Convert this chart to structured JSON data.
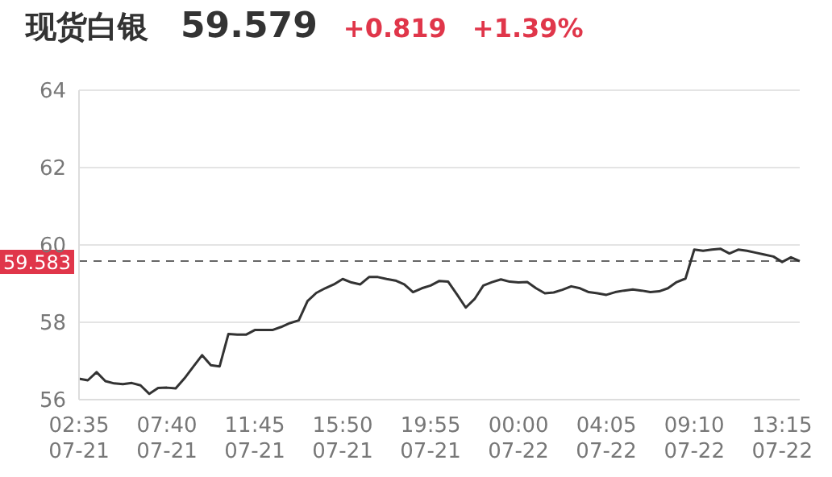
{
  "chart_data": {
    "type": "line",
    "title": "现货白银",
    "annotations": [
      "59.579",
      "+0.819",
      "+1.39%"
    ],
    "categories": [
      "02:35\n07-21",
      null,
      null,
      null,
      null,
      null,
      null,
      null,
      null,
      null,
      "07:40\n07-21",
      null,
      null,
      null,
      null,
      null,
      null,
      null,
      null,
      null,
      "11:45\n07-21",
      null,
      null,
      null,
      null,
      null,
      null,
      null,
      null,
      null,
      "15:50\n07-21",
      null,
      null,
      null,
      null,
      null,
      null,
      null,
      null,
      null,
      "19:55\n07-21",
      null,
      null,
      null,
      null,
      null,
      null,
      null,
      null,
      null,
      "00:00\n07-22",
      null,
      null,
      null,
      null,
      null,
      null,
      null,
      null,
      null,
      "04:05\n07-22",
      null,
      null,
      null,
      null,
      null,
      null,
      null,
      null,
      null,
      "09:10\n07-22",
      null,
      null,
      null,
      null,
      null,
      null,
      null,
      null,
      null,
      "13:15\n07-22",
      null,
      null
    ],
    "values": [
      56.54,
      56.5,
      56.71,
      56.48,
      56.42,
      56.4,
      56.43,
      56.37,
      56.15,
      56.3,
      56.31,
      56.29,
      56.55,
      56.85,
      57.15,
      56.89,
      56.86,
      57.7,
      57.68,
      57.68,
      57.8,
      57.8,
      57.8,
      57.88,
      57.98,
      58.05,
      58.55,
      58.76,
      58.88,
      58.98,
      59.12,
      59.03,
      58.98,
      59.17,
      59.17,
      59.12,
      59.08,
      58.98,
      58.78,
      58.88,
      58.95,
      59.07,
      59.05,
      58.72,
      58.38,
      58.6,
      58.95,
      59.04,
      59.11,
      59.05,
      59.03,
      59.04,
      58.88,
      58.75,
      58.77,
      58.84,
      58.93,
      58.88,
      58.78,
      58.75,
      58.71,
      58.78,
      58.82,
      58.85,
      58.82,
      58.78,
      58.8,
      58.88,
      59.04,
      59.13,
      59.88,
      59.85,
      59.88,
      59.9,
      59.78,
      59.88,
      59.85,
      59.8,
      59.75,
      59.7,
      59.56,
      59.68,
      59.58
    ],
    "color": "#333333",
    "line_style": "solid",
    "ylim": [
      56,
      64
    ],
    "yticks": [
      56,
      58,
      60,
      62,
      64
    ],
    "grid": "y",
    "ref_lines": [
      {
        "axis": "y",
        "value": 59.583,
        "label": "59.583",
        "color": "#666666",
        "line_style": "dashed"
      }
    ]
  }
}
